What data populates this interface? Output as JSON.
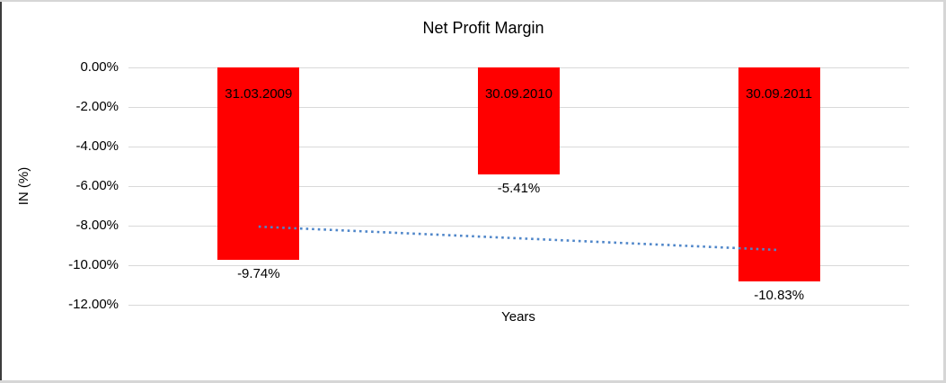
{
  "chart_data": {
    "type": "bar",
    "title": "Net Profit Margin",
    "xlabel": "Years",
    "ylabel": "IN (%)",
    "categories": [
      "31.03.2009",
      "30.09.2010",
      "30.09.2011"
    ],
    "values": [
      -9.74,
      -5.41,
      -10.83
    ],
    "value_labels": [
      "-9.74%",
      "-5.41%",
      "-10.83%"
    ],
    "y_ticks": [
      {
        "label": "0.00%",
        "value": 0
      },
      {
        "label": "-2.00%",
        "value": -2
      },
      {
        "label": "-4.00%",
        "value": -4
      },
      {
        "label": "-6.00%",
        "value": -6
      },
      {
        "label": "-8.00%",
        "value": -8
      },
      {
        "label": "-10.00%",
        "value": -10
      },
      {
        "label": "-12.00%",
        "value": -12
      }
    ],
    "ylim": [
      0,
      -12
    ],
    "grid": true,
    "legend": "none",
    "bar_color": "#ff0000",
    "gridline_color": "#d9d9d9",
    "label_color": "#000000",
    "trendline": {
      "style": "dotted",
      "color": "#4f86c9",
      "start_value": -8.05,
      "end_value": -9.23
    }
  }
}
